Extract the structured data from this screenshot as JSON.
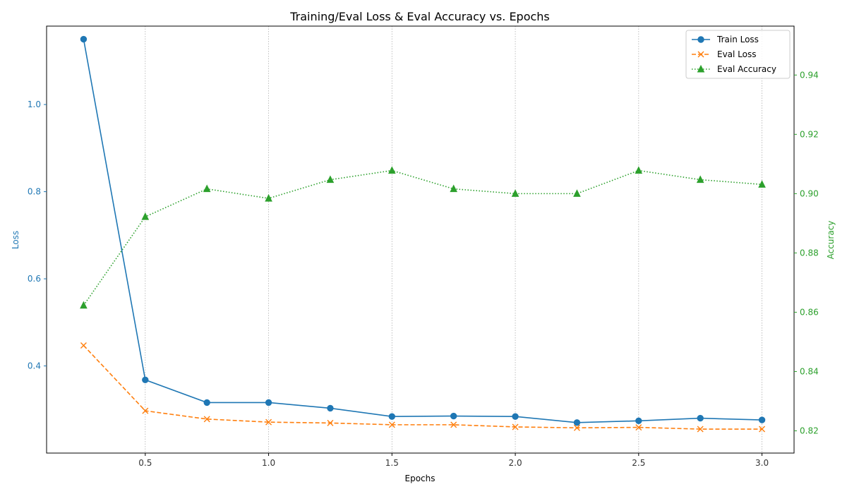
{
  "chart_data": {
    "type": "line",
    "title": "Training/Eval Loss & Eval Accuracy vs. Epochs",
    "xlabel": "Epochs",
    "ylabel_left": "Loss",
    "ylabel_right": "Accuracy",
    "x": [
      0.25,
      0.5,
      0.75,
      1.0,
      1.25,
      1.5,
      1.75,
      2.0,
      2.25,
      2.5,
      2.75,
      3.0
    ],
    "xlim": [
      0.1,
      3.13
    ],
    "ylim_left": [
      0.2,
      1.18
    ],
    "ylim_right": [
      0.8125,
      0.9565
    ],
    "x_ticks": [
      "0.5",
      "1.0",
      "1.5",
      "2.0",
      "2.5",
      "3.0"
    ],
    "y_ticks_left": [
      "0.4",
      "0.6",
      "0.8",
      "1.0"
    ],
    "y_ticks_right": [
      "0.82",
      "0.84",
      "0.86",
      "0.88",
      "0.90",
      "0.92",
      "0.94"
    ],
    "grid": "vertical dotted at x ticks",
    "legend_position": "top-right",
    "series": [
      {
        "name": "Train Loss",
        "axis": "left",
        "color": "#1f77b4",
        "marker": "circle",
        "linestyle": "solid",
        "values": [
          1.15,
          0.368,
          0.316,
          0.316,
          0.303,
          0.284,
          0.285,
          0.284,
          0.27,
          0.274,
          0.28,
          0.276
        ]
      },
      {
        "name": "Eval Loss",
        "axis": "left",
        "color": "#ff7f0e",
        "marker": "x",
        "linestyle": "dashed",
        "values": [
          0.447,
          0.297,
          0.278,
          0.271,
          0.269,
          0.265,
          0.265,
          0.26,
          0.258,
          0.259,
          0.255,
          0.255
        ]
      },
      {
        "name": "Eval Accuracy",
        "axis": "right",
        "color": "#2ca02c",
        "marker": "triangle",
        "linestyle": "dotted",
        "values": [
          0.8623,
          0.8922,
          0.9016,
          0.8984,
          0.9047,
          0.9078,
          0.9016,
          0.9,
          0.9,
          0.9078,
          0.9047,
          0.9031
        ]
      }
    ]
  }
}
